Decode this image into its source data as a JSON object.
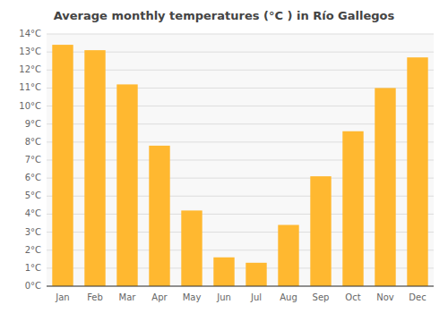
{
  "chart_data": {
    "type": "bar",
    "title": "Average monthly temperatures (°C ) in Río Gallegos",
    "categories": [
      "Jan",
      "Feb",
      "Mar",
      "Apr",
      "May",
      "Jun",
      "Jul",
      "Aug",
      "Sep",
      "Oct",
      "Nov",
      "Dec"
    ],
    "values": [
      13.4,
      13.1,
      11.2,
      7.8,
      4.2,
      1.6,
      1.3,
      3.4,
      6.1,
      8.6,
      11.0,
      12.7
    ],
    "color": "#FFB830",
    "ylim": [
      0,
      14
    ],
    "yticks": [
      {
        "value": 0,
        "label": "0°C"
      },
      {
        "value": 1,
        "label": "1°C"
      },
      {
        "value": 2,
        "label": "2°C"
      },
      {
        "value": 3,
        "label": "3°C"
      },
      {
        "value": 4,
        "label": "4°C"
      },
      {
        "value": 5,
        "label": "5°C"
      },
      {
        "value": 6,
        "label": "6°C"
      },
      {
        "value": 7,
        "label": "7°C"
      },
      {
        "value": 8,
        "label": "8°C"
      },
      {
        "value": 9,
        "label": "9°C"
      },
      {
        "value": 10,
        "label": "10°C"
      },
      {
        "value": 11,
        "label": "11°C"
      },
      {
        "value": 12,
        "label": "12°C"
      },
      {
        "value": 13,
        "label": "13°C"
      },
      {
        "value": 14,
        "label": "14°C"
      }
    ],
    "grid": true
  }
}
